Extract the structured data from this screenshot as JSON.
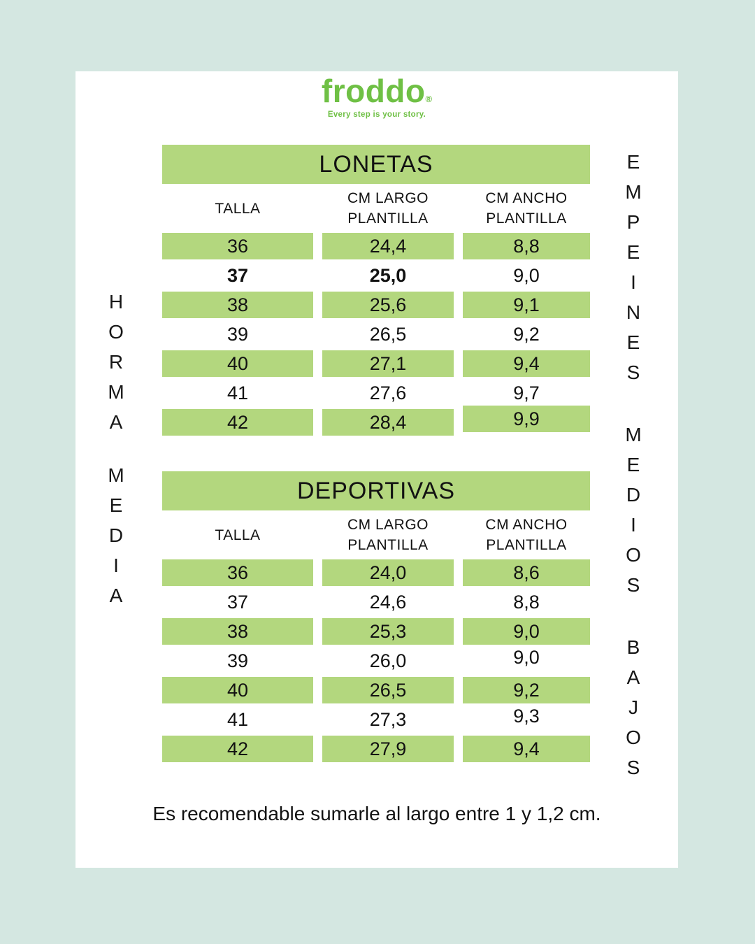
{
  "colors": {
    "background_mint": "#d4e7e1",
    "card_white": "#ffffff",
    "row_green": "#b3d77e",
    "logo_green": "#6fc045",
    "text_dark": "#121212"
  },
  "logo": {
    "brand": "froddo",
    "registered_mark": "®",
    "tagline": "Every step is your story."
  },
  "side_labels": {
    "left": [
      "HORMA",
      "MEDIA"
    ],
    "right": [
      "EMPEINES",
      "MEDIOS",
      "BAJOS"
    ]
  },
  "tables": [
    {
      "title": "LONETAS",
      "columns": [
        "TALLA",
        "CM LARGO\nPLANTILLA",
        "CM ANCHO\nPLANTILLA"
      ],
      "rows": [
        {
          "talla": "36",
          "largo": "24,4",
          "ancho": "8,8",
          "highlight": true,
          "bold": [],
          "raised": []
        },
        {
          "talla": "37",
          "largo": "25,0",
          "ancho": "9,0",
          "highlight": false,
          "bold": [
            "talla",
            "largo"
          ],
          "raised": []
        },
        {
          "talla": "38",
          "largo": "25,6",
          "ancho": "9,1",
          "highlight": true,
          "bold": [],
          "raised": []
        },
        {
          "talla": "39",
          "largo": "26,5",
          "ancho": "9,2",
          "highlight": false,
          "bold": [],
          "raised": []
        },
        {
          "talla": "40",
          "largo": "27,1",
          "ancho": "9,4",
          "highlight": true,
          "bold": [],
          "raised": []
        },
        {
          "talla": "41",
          "largo": "27,6",
          "ancho": "9,7",
          "highlight": false,
          "bold": [],
          "raised": []
        },
        {
          "talla": "42",
          "largo": "28,4",
          "ancho": "9,9",
          "highlight": true,
          "bold": [],
          "raised": [
            "ancho"
          ]
        }
      ]
    },
    {
      "title": "DEPORTIVAS",
      "columns": [
        "TALLA",
        "CM LARGO\nPLANTILLA",
        "CM ANCHO\nPLANTILLA"
      ],
      "rows": [
        {
          "talla": "36",
          "largo": "24,0",
          "ancho": "8,6",
          "highlight": true,
          "bold": [],
          "raised": []
        },
        {
          "talla": "37",
          "largo": "24,6",
          "ancho": "8,8",
          "highlight": false,
          "bold": [],
          "raised": []
        },
        {
          "talla": "38",
          "largo": "25,3",
          "ancho": "9,0",
          "highlight": true,
          "bold": [],
          "raised": []
        },
        {
          "talla": "39",
          "largo": "26,0",
          "ancho": "9,0",
          "highlight": false,
          "bold": [],
          "raised": [
            "ancho"
          ]
        },
        {
          "talla": "40",
          "largo": "26,5",
          "ancho": "9,2",
          "highlight": true,
          "bold": [],
          "raised": []
        },
        {
          "talla": "41",
          "largo": "27,3",
          "ancho": "9,3",
          "highlight": false,
          "bold": [],
          "raised": [
            "ancho"
          ]
        },
        {
          "talla": "42",
          "largo": "27,9",
          "ancho": "9,4",
          "highlight": true,
          "bold": [],
          "raised": []
        }
      ]
    }
  ],
  "footer": {
    "note": "Es recomendable sumarle al largo entre 1 y 1,2 cm."
  }
}
